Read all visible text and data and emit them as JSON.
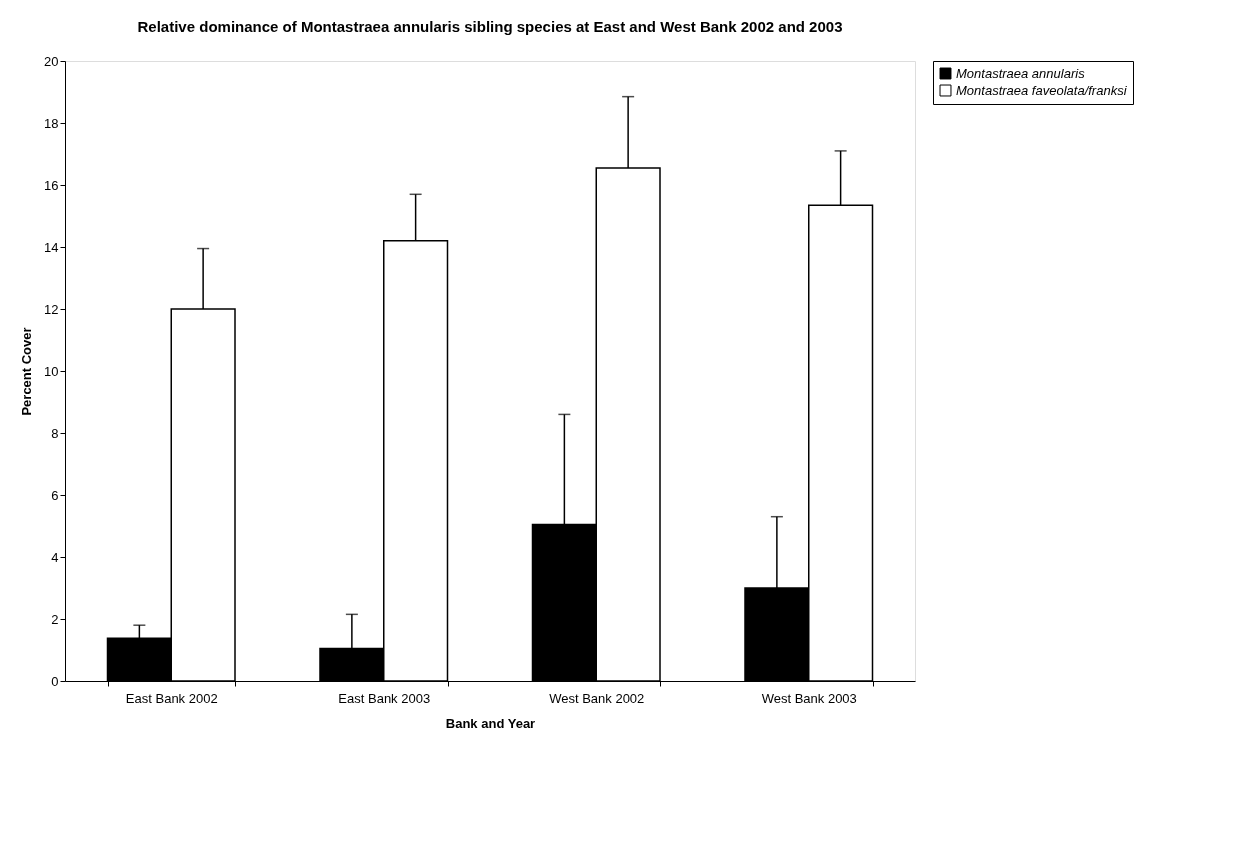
{
  "chart_data": {
    "type": "bar",
    "title": "Relative dominance of Montastraea annularis sibling species at East and West Bank 2002 and 2003",
    "xlabel": "Bank and Year",
    "ylabel": "Percent Cover",
    "categories": [
      "East Bank 2002",
      "East Bank 2003",
      "West Bank 2002",
      "West Bank 2003"
    ],
    "series": [
      {
        "name": "Montastraea annularis",
        "color": "#000000",
        "values": [
          1.38,
          1.05,
          5.05,
          3.0
        ],
        "errors": [
          [
            1.38,
            1.8
          ],
          [
            1.05,
            2.15
          ],
          [
            5.05,
            8.6
          ],
          [
            3.0,
            5.3
          ]
        ]
      },
      {
        "name": "Montastraea faveolata/franksi",
        "color": "#ffffff",
        "values": [
          12.0,
          14.2,
          16.55,
          15.35
        ],
        "errors": [
          [
            12.0,
            13.95
          ],
          [
            14.2,
            15.7
          ],
          [
            16.55,
            18.85
          ],
          [
            15.35,
            17.1
          ]
        ]
      }
    ],
    "ylim": [
      0,
      20
    ],
    "yticks": [
      0,
      2,
      4,
      6,
      8,
      10,
      12,
      14,
      16,
      18,
      20
    ],
    "grid": false,
    "legend": "right"
  }
}
